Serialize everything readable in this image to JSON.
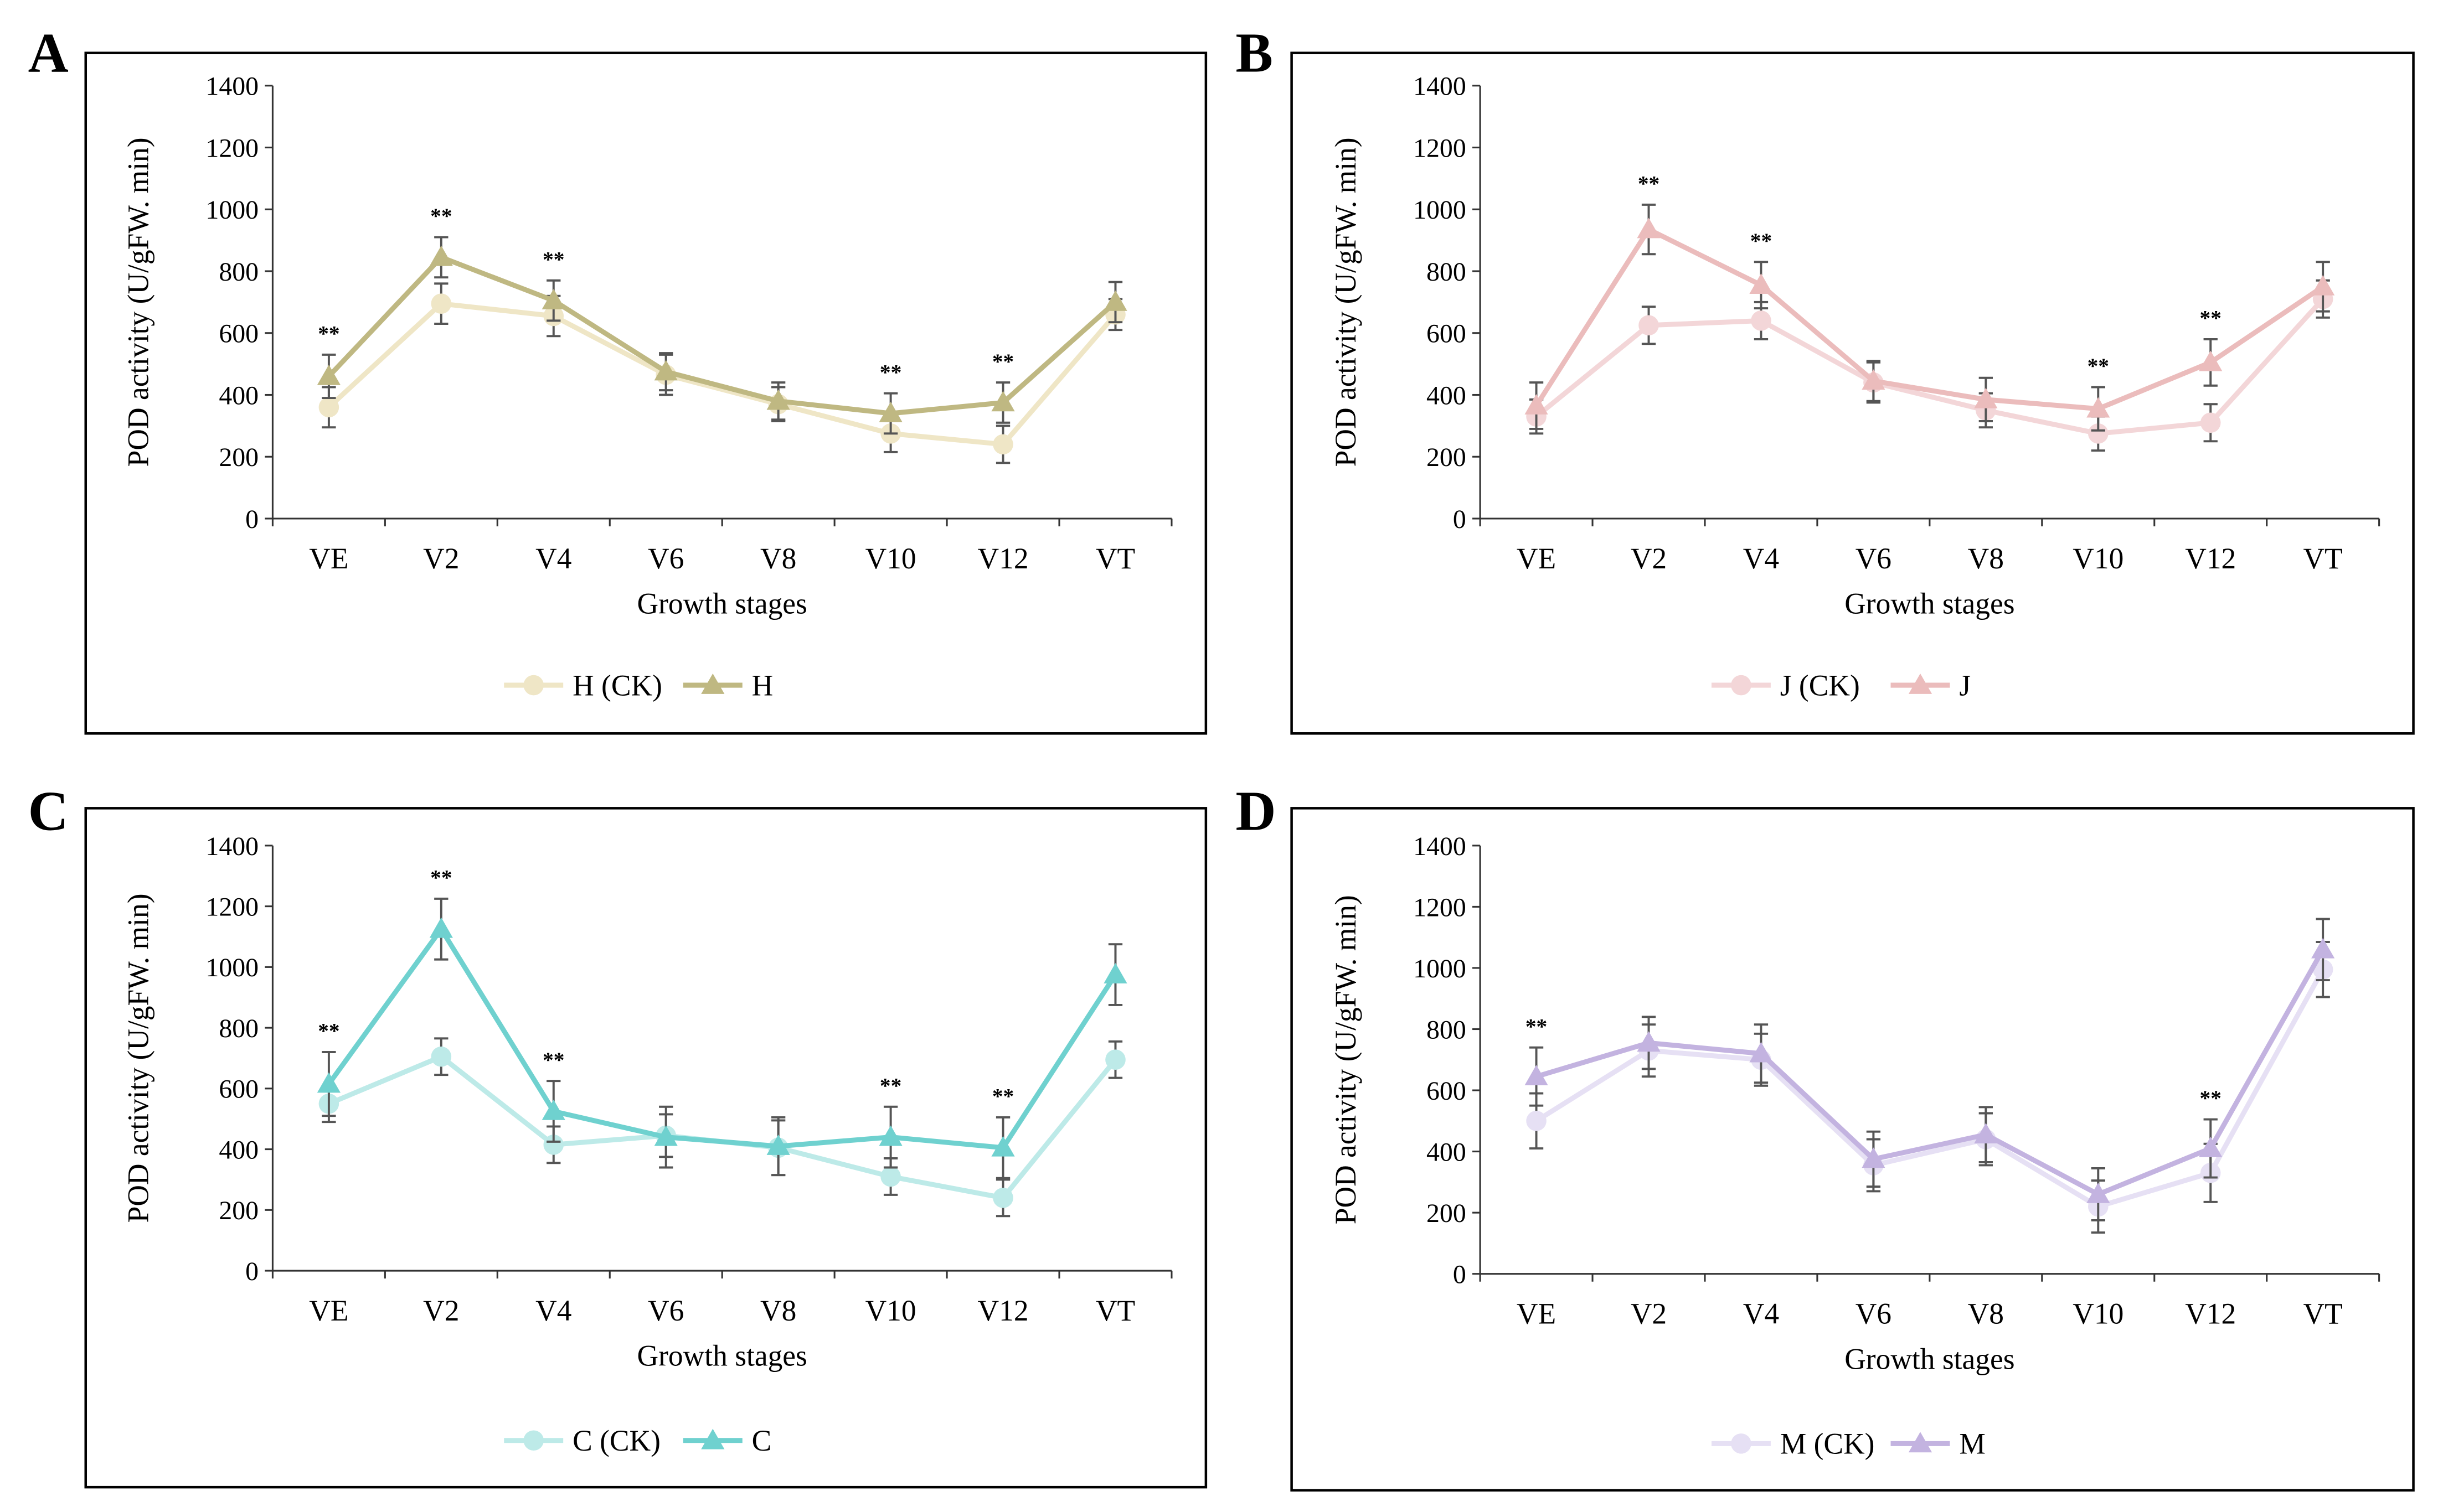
{
  "chart_data": [
    {
      "panel_label": "A",
      "type": "line",
      "xlabel": "Growth stages",
      "ylabel": "POD activity (U/gFW. min)",
      "ylim": [
        0,
        1400
      ],
      "yticks": [
        0,
        200,
        400,
        600,
        800,
        1000,
        1200,
        1400
      ],
      "categories": [
        "VE",
        "V2",
        "V4",
        "V6",
        "V8",
        "V10",
        "V12",
        "VT"
      ],
      "series": [
        {
          "name": "H (CK)",
          "marker": "circle",
          "color": "#efe6c6",
          "values": [
            360,
            695,
            655,
            465,
            370,
            275,
            240,
            660
          ],
          "errors": [
            65,
            65,
            65,
            65,
            55,
            60,
            60,
            50
          ]
        },
        {
          "name": "H",
          "marker": "triangle",
          "color": "#bfb882",
          "values": [
            460,
            845,
            705,
            475,
            380,
            340,
            375,
            700
          ],
          "errors": [
            70,
            65,
            65,
            60,
            60,
            65,
            65,
            65
          ]
        }
      ],
      "annotations": [
        {
          "category": "VE",
          "text": "**"
        },
        {
          "category": "V2",
          "text": "**"
        },
        {
          "category": "V4",
          "text": "**"
        },
        {
          "category": "V10",
          "text": "**"
        },
        {
          "category": "V12",
          "text": "**"
        }
      ],
      "legend": "bottom-center"
    },
    {
      "panel_label": "B",
      "type": "line",
      "xlabel": "Growth stages",
      "ylabel": "POD activity (U/gFW. min)",
      "ylim": [
        0,
        1400
      ],
      "yticks": [
        0,
        200,
        400,
        600,
        800,
        1000,
        1200,
        1400
      ],
      "categories": [
        "VE",
        "V2",
        "V4",
        "V6",
        "V8",
        "V10",
        "V12",
        "VT"
      ],
      "series": [
        {
          "name": "J (CK)",
          "marker": "circle",
          "color": "#f3d6d8",
          "values": [
            330,
            625,
            640,
            440,
            350,
            275,
            310,
            710
          ],
          "errors": [
            55,
            60,
            60,
            65,
            55,
            55,
            60,
            60
          ]
        },
        {
          "name": "J",
          "marker": "triangle",
          "color": "#ebbcbc",
          "values": [
            365,
            935,
            755,
            445,
            385,
            355,
            505,
            750
          ],
          "errors": [
            75,
            80,
            75,
            65,
            70,
            70,
            75,
            80
          ]
        }
      ],
      "annotations": [
        {
          "category": "V2",
          "text": "**"
        },
        {
          "category": "V4",
          "text": "**"
        },
        {
          "category": "V10",
          "text": "**"
        },
        {
          "category": "V12",
          "text": "**"
        }
      ],
      "legend": "bottom-center"
    },
    {
      "panel_label": "C",
      "type": "line",
      "xlabel": "Growth stages",
      "ylabel": "POD activity (U/gFW. min)",
      "ylim": [
        0,
        1400
      ],
      "yticks": [
        0,
        200,
        400,
        600,
        800,
        1000,
        1200,
        1400
      ],
      "categories": [
        "VE",
        "V2",
        "V4",
        "V6",
        "V8",
        "V10",
        "V12",
        "VT"
      ],
      "series": [
        {
          "name": "C (CK)",
          "marker": "circle",
          "color": "#bdeae8",
          "values": [
            550,
            705,
            415,
            445,
            405,
            310,
            240,
            695
          ],
          "errors": [
            60,
            60,
            60,
            70,
            90,
            60,
            60,
            60
          ]
        },
        {
          "name": "C",
          "marker": "triangle",
          "color": "#6fd1cf",
          "values": [
            615,
            1125,
            525,
            440,
            410,
            440,
            405,
            975
          ],
          "errors": [
            105,
            100,
            100,
            100,
            95,
            100,
            100,
            100
          ]
        }
      ],
      "annotations": [
        {
          "category": "VE",
          "text": "**"
        },
        {
          "category": "V2",
          "text": "**"
        },
        {
          "category": "V4",
          "text": "**"
        },
        {
          "category": "V10",
          "text": "**"
        },
        {
          "category": "V12",
          "text": "**"
        }
      ],
      "legend": "bottom-center"
    },
    {
      "panel_label": "D",
      "type": "line",
      "xlabel": "Growth stages",
      "ylabel": "POD activity (U/gFW. min)",
      "ylim": [
        0,
        1400
      ],
      "yticks": [
        0,
        200,
        400,
        600,
        800,
        1000,
        1200,
        1400
      ],
      "categories": [
        "VE",
        "V2",
        "V4",
        "V6",
        "V8",
        "V10",
        "V12",
        "VT"
      ],
      "series": [
        {
          "name": "M (CK)",
          "marker": "circle",
          "color": "#e6e0f4",
          "values": [
            500,
            730,
            700,
            355,
            440,
            220,
            330,
            995
          ],
          "errors": [
            90,
            85,
            85,
            85,
            85,
            85,
            95,
            90
          ]
        },
        {
          "name": "M",
          "marker": "triangle",
          "color": "#c3b3e0",
          "values": [
            645,
            755,
            720,
            375,
            455,
            260,
            410,
            1060
          ],
          "errors": [
            95,
            85,
            95,
            90,
            90,
            85,
            95,
            100
          ]
        }
      ],
      "annotations": [
        {
          "category": "VE",
          "text": "**"
        },
        {
          "category": "V12",
          "text": "**"
        }
      ],
      "legend": "bottom-center"
    }
  ]
}
